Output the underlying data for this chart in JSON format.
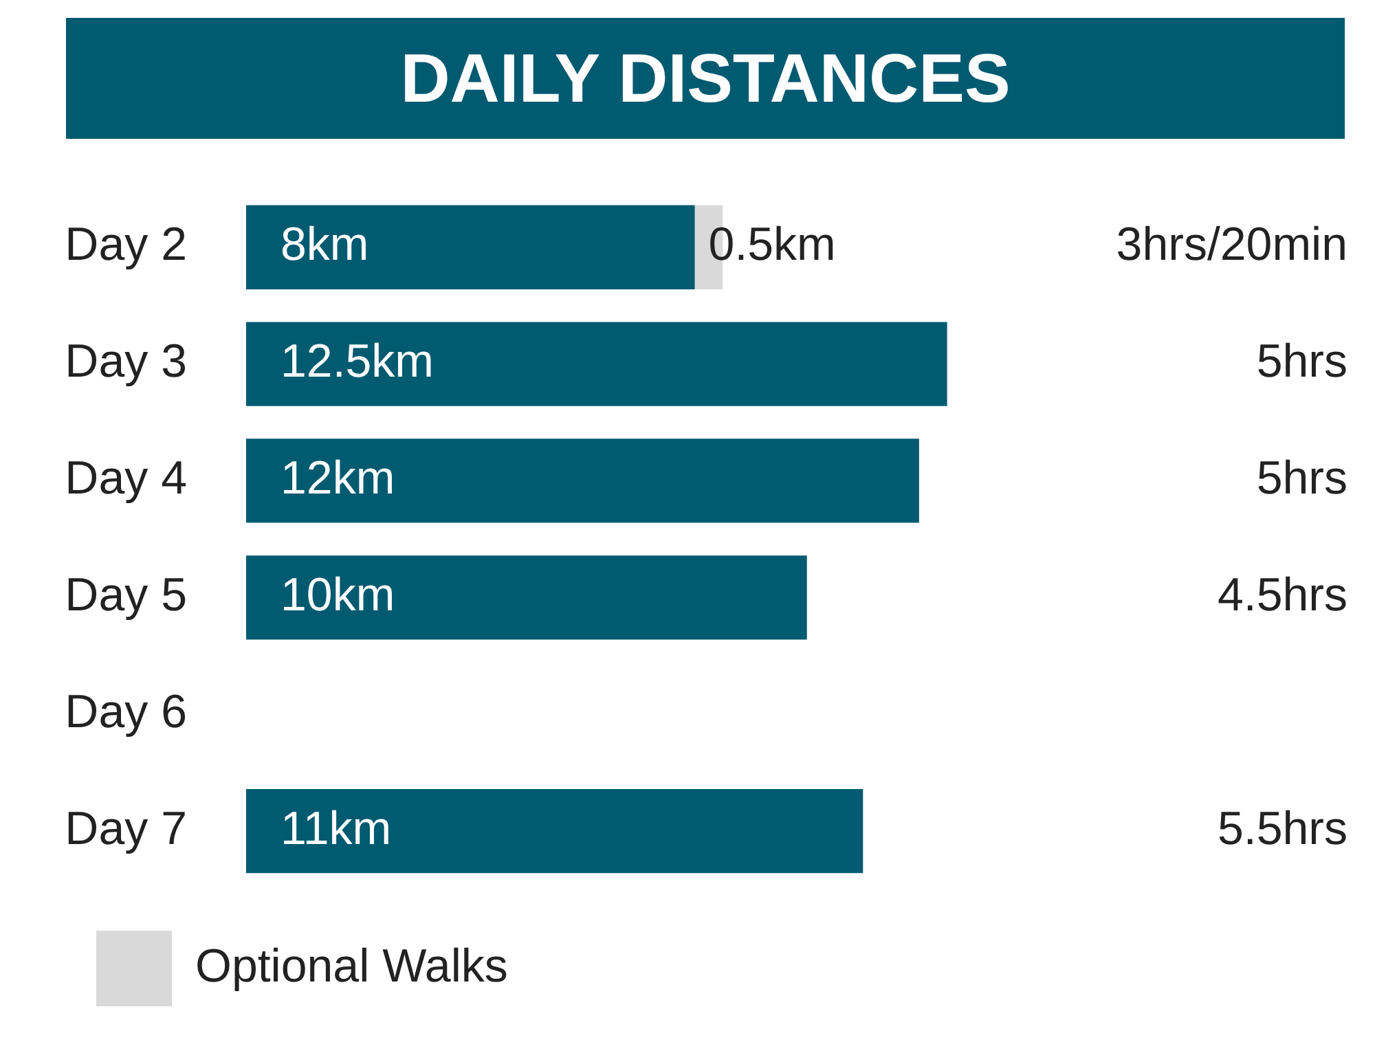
{
  "chart_data": {
    "type": "bar",
    "title": "DAILY DISTANCES",
    "orientation": "horizontal",
    "stacked": true,
    "categories": [
      "Day 2",
      "Day 3",
      "Day 4",
      "Day 5",
      "Day 6",
      "Day 7"
    ],
    "series": [
      {
        "color": "#005a70",
        "values": [
          8,
          12.5,
          12,
          10,
          null,
          11
        ],
        "value_labels": [
          "8km",
          "12.5km",
          "12km",
          "10km",
          null,
          "11km"
        ]
      },
      {
        "name": "Optional Walks",
        "color": "#d9d9d9",
        "values": [
          0.5,
          null,
          null,
          null,
          null,
          null
        ],
        "value_labels": [
          "0.5km",
          null,
          null,
          null,
          null,
          null
        ]
      }
    ],
    "annotations": [
      "3hrs/20min",
      "5hrs",
      "5hrs",
      "4.5hrs",
      "5.5hrs"
    ],
    "grid": false,
    "legend": "bottom left"
  }
}
